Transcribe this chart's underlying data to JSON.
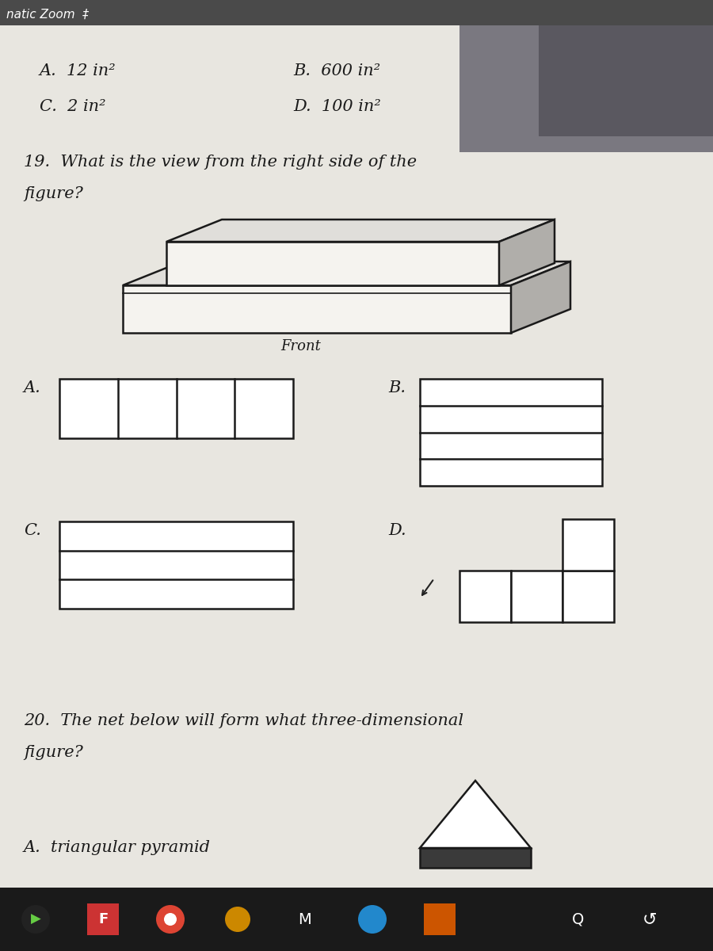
{
  "bg_color": "#cac8c2",
  "header_color": "#7a2020",
  "header_text": "natic Zoom  ‡",
  "q19_text": "19.  What is the view from the right side of the\nfigure?",
  "q20_text": "20.  The net below will form what three-dimensional\nfigure?",
  "q20_answer_a": "A.  triangular pyramid",
  "line_color": "#1a1a1a",
  "face_color_light": "#f5f3ef",
  "face_color_top": "#e0deda",
  "face_color_side": "#b0aeaa",
  "photo_color": "#5a5a62",
  "taskbar_color": "#1a1a1a"
}
